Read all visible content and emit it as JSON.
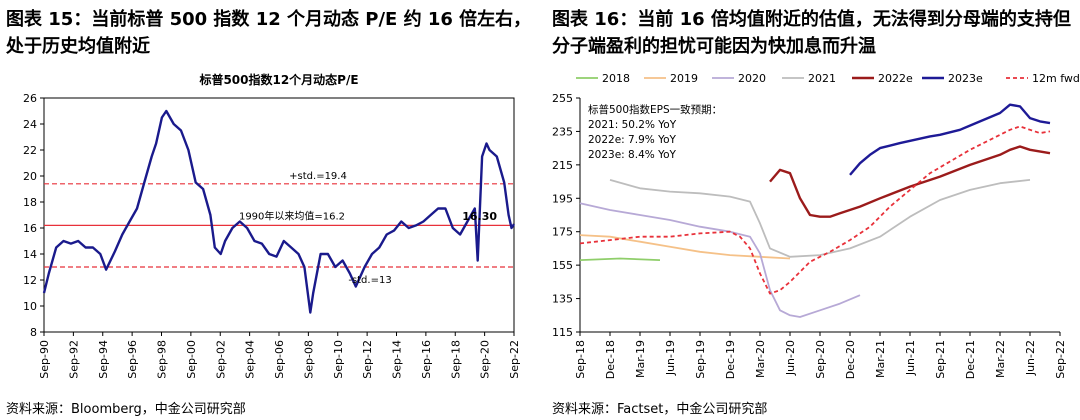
{
  "left": {
    "caption": "图表 15：当前标普 500 指数 12 个月动态 P/E 约 16 倍左右，处于历史均值附近",
    "source": "资料来源：Bloomberg，中金公司研究部"
  },
  "right": {
    "caption": "图表 16：当前 16 倍均值附近的估值，无法得到分母端的支持但分子端盈利的担忧可能因为快加息而升温",
    "source": "资料来源：Factset，中金公司研究部"
  },
  "chart_data": [
    {
      "type": "line",
      "title": "标普500指数12个月动态P/E",
      "xlabel": "",
      "ylabel": "",
      "ylim": [
        8,
        26
      ],
      "yticks": [
        8,
        10,
        12,
        14,
        16,
        18,
        20,
        22,
        24,
        26
      ],
      "xticks": [
        "Sep-90",
        "Sep-92",
        "Sep-94",
        "Sep-96",
        "Sep-98",
        "Sep-00",
        "Sep-02",
        "Sep-04",
        "Sep-06",
        "Sep-08",
        "Sep-10",
        "Sep-12",
        "Sep-14",
        "Sep-16",
        "Sep-18",
        "Sep-20",
        "Sep-22"
      ],
      "x_range": [
        1990.67,
        2022.67
      ],
      "colors": {
        "pe": "#1a1a8c",
        "ref": "#e8313a"
      },
      "series": [
        {
          "name": "标普500指数12个月动态P/E",
          "x": [
            1990.67,
            1991.0,
            1991.5,
            1992.0,
            1992.5,
            1993.0,
            1993.5,
            1994.0,
            1994.5,
            1994.9,
            1995.5,
            1996.0,
            1996.5,
            1997.0,
            1997.5,
            1998.0,
            1998.3,
            1998.7,
            1999.0,
            1999.5,
            2000.0,
            2000.5,
            2001.0,
            2001.5,
            2002.0,
            2002.3,
            2002.7,
            2003.0,
            2003.5,
            2004.0,
            2004.5,
            2005.0,
            2005.5,
            2006.0,
            2006.5,
            2007.0,
            2007.5,
            2008.0,
            2008.4,
            2008.8,
            2009.0,
            2009.5,
            2010.0,
            2010.5,
            2011.0,
            2011.5,
            2011.9,
            2012.5,
            2013.0,
            2013.5,
            2014.0,
            2014.5,
            2015.0,
            2015.5,
            2016.0,
            2016.5,
            2017.0,
            2017.5,
            2018.0,
            2018.5,
            2019.0,
            2019.5,
            2020.0,
            2020.2,
            2020.5,
            2020.8,
            2021.0,
            2021.5,
            2022.0,
            2022.3,
            2022.5,
            2022.67
          ],
          "values": [
            11.0,
            12.5,
            14.5,
            15.0,
            14.8,
            15.0,
            14.5,
            14.5,
            14.0,
            12.8,
            14.2,
            15.5,
            16.5,
            17.5,
            19.5,
            21.5,
            22.5,
            24.5,
            25.0,
            24.0,
            23.5,
            22.0,
            19.5,
            19.0,
            17.0,
            14.5,
            14.0,
            15.0,
            16.0,
            16.5,
            16.0,
            15.0,
            14.8,
            14.0,
            13.8,
            15.0,
            14.5,
            14.0,
            13.0,
            9.5,
            11.0,
            14.0,
            14.0,
            13.0,
            13.5,
            12.5,
            11.5,
            13.0,
            14.0,
            14.5,
            15.5,
            15.8,
            16.5,
            16.0,
            16.2,
            16.5,
            17.0,
            17.5,
            17.5,
            16.0,
            15.5,
            16.5,
            17.5,
            13.5,
            21.5,
            22.5,
            22.0,
            21.5,
            19.5,
            17.0,
            16.0,
            16.3
          ]
        },
        {
          "name": "+std.=19.4",
          "constant": 19.4
        },
        {
          "name": "1990年以来均值=16.2",
          "constant": 16.2
        },
        {
          "name": "-std.=13",
          "constant": 13.0
        }
      ],
      "annotations": [
        {
          "text": "+std.=19.4",
          "value": 19.4
        },
        {
          "text": "1990年以来均值=16.2",
          "value": 16.2
        },
        {
          "text": "-std.=13",
          "value": 13.0
        },
        {
          "text": "16.30",
          "value": 16.3
        }
      ]
    },
    {
      "type": "line",
      "title": "",
      "xlabel": "",
      "ylabel": "",
      "ylim": [
        115,
        255
      ],
      "yticks": [
        115,
        135,
        155,
        175,
        195,
        215,
        235,
        255
      ],
      "xticks": [
        "Sep-18",
        "Dec-18",
        "Mar-19",
        "Jun-19",
        "Sep-19",
        "Dec-19",
        "Mar-20",
        "Jun-20",
        "Sep-20",
        "Dec-20",
        "Mar-21",
        "Jun-21",
        "Sep-21",
        "Dec-21",
        "Mar-22",
        "Jun-22",
        "Sep-22"
      ],
      "x_range": [
        0,
        48
      ],
      "legend": [
        "2018",
        "2019",
        "2020",
        "2021",
        "2022e",
        "2023e",
        "12m fwd"
      ],
      "legend_position": "top",
      "annotation_lines": [
        "标普500指数EPS一致预期：",
        "2021: 50.2% YoY",
        "2022e: 7.9% YoY",
        "2023e: 8.4% YoY"
      ],
      "series": [
        {
          "name": "2018",
          "color": "#8fce6a",
          "x": [
            0,
            4,
            8
          ],
          "values": [
            158,
            159,
            158
          ]
        },
        {
          "name": "2019",
          "color": "#f5c188",
          "x": [
            0,
            3,
            6,
            9,
            12,
            15,
            18,
            21
          ],
          "values": [
            173,
            172,
            169,
            166,
            163,
            161,
            160,
            159
          ]
        },
        {
          "name": "2020",
          "color": "#b7a9d6",
          "x": [
            0,
            3,
            6,
            9,
            12,
            15,
            17,
            18,
            19,
            20,
            21,
            22,
            24,
            26,
            28
          ],
          "values": [
            192,
            188,
            185,
            182,
            178,
            175,
            172,
            162,
            140,
            128,
            125,
            124,
            128,
            132,
            137
          ]
        },
        {
          "name": "2021",
          "color": "#bdbdbd",
          "x": [
            3,
            6,
            9,
            12,
            15,
            17,
            18,
            19,
            21,
            24,
            27,
            30,
            33,
            36,
            39,
            42,
            45
          ],
          "values": [
            206,
            201,
            199,
            198,
            196,
            193,
            180,
            165,
            160,
            161,
            165,
            172,
            184,
            194,
            200,
            204,
            206
          ]
        },
        {
          "name": "2022e",
          "color": "#9b1b1b",
          "x": [
            19,
            20,
            21,
            22,
            23,
            24,
            25,
            26,
            28,
            30,
            33,
            36,
            39,
            42,
            43,
            44,
            45,
            47
          ],
          "values": [
            205,
            212,
            210,
            195,
            185,
            184,
            184,
            186,
            190,
            195,
            202,
            208,
            215,
            221,
            224,
            226,
            224,
            222
          ]
        },
        {
          "name": "2023e",
          "color": "#1e1a96",
          "x": [
            27,
            28,
            29,
            30,
            32,
            35,
            36,
            38,
            40,
            42,
            43,
            44,
            45,
            46,
            47
          ],
          "values": [
            209,
            216,
            221,
            225,
            228,
            232,
            233,
            236,
            241,
            246,
            251,
            250,
            243,
            241,
            240
          ]
        },
        {
          "name": "12m fwd",
          "color": "#e8313a",
          "dashed": true,
          "x": [
            0,
            3,
            6,
            9,
            12,
            15,
            16,
            17,
            18,
            19,
            20,
            21,
            23,
            25,
            27,
            29,
            31,
            33,
            35,
            37,
            39,
            41,
            43,
            44,
            45,
            46,
            47
          ],
          "values": [
            168,
            170,
            172,
            172,
            174,
            175,
            172,
            165,
            150,
            138,
            140,
            145,
            157,
            163,
            170,
            178,
            190,
            200,
            210,
            217,
            224,
            230,
            236,
            238,
            236,
            234,
            235
          ]
        }
      ]
    }
  ]
}
